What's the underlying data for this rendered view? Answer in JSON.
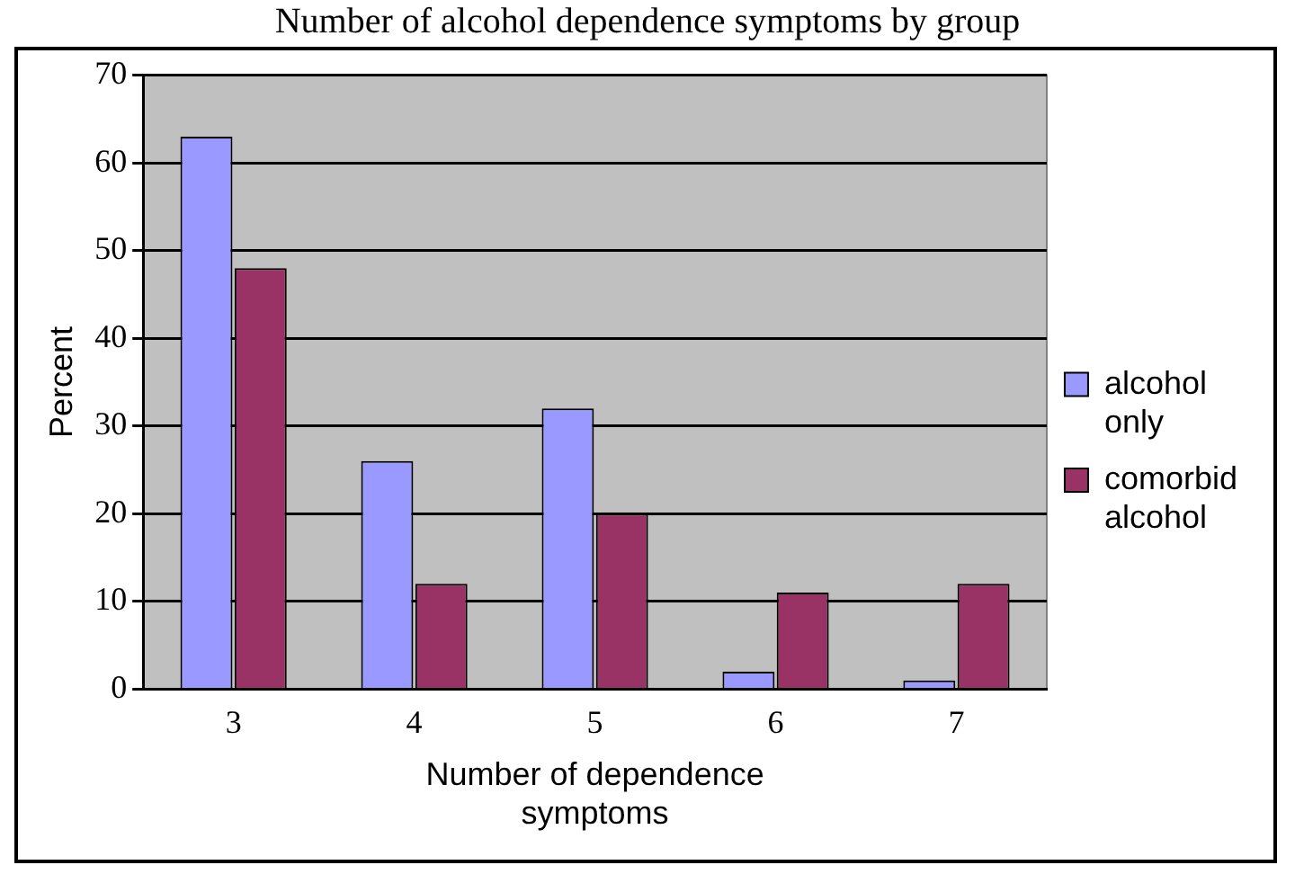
{
  "chart_data": {
    "type": "bar",
    "title": "Number of alcohol dependence symptoms by group",
    "xlabel": "Number of dependence symptoms",
    "ylabel": "Percent",
    "categories": [
      "3",
      "4",
      "5",
      "6",
      "7"
    ],
    "series": [
      {
        "name": "alcohol only",
        "color": "#9999ff",
        "values": [
          63,
          26,
          32,
          2,
          1
        ]
      },
      {
        "name": "comorbid alcohol",
        "color": "#993366",
        "values": [
          48,
          12,
          20,
          11,
          12
        ]
      }
    ],
    "ylim": [
      0,
      70
    ],
    "yticks": [
      0,
      10,
      20,
      30,
      40,
      50,
      60,
      70
    ],
    "grid": "y",
    "legend": "right"
  }
}
